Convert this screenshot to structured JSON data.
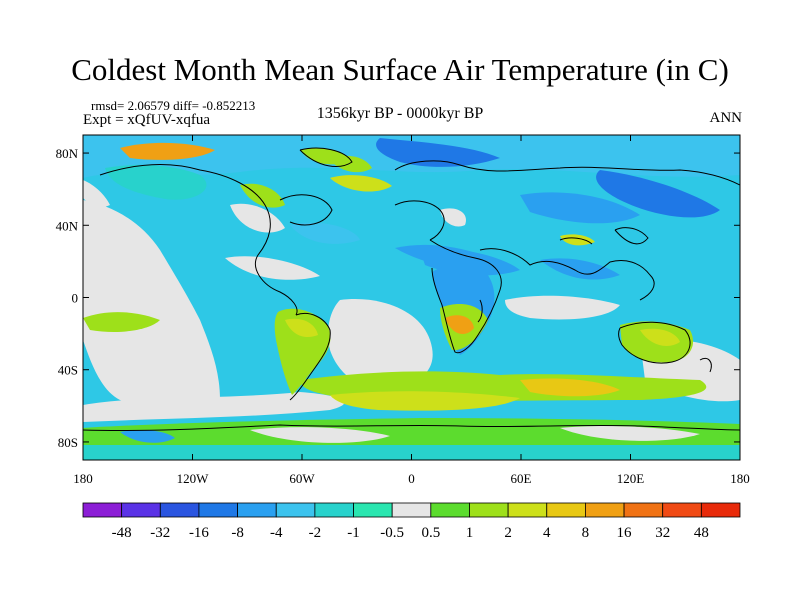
{
  "header": {
    "title": "Coldest Month Mean Surface Air Temperature (in C)",
    "stats": "rmsd= 2.06579 diff= -0.852213",
    "experiment": "Expt = xQfUV-xqfua",
    "period": "1356kyr BP - 0000kyr BP",
    "season": "ANN"
  },
  "map": {
    "lat_ticks": [
      {
        "label": "80N",
        "value": 80
      },
      {
        "label": "40N",
        "value": 40
      },
      {
        "label": "0",
        "value": 0
      },
      {
        "label": "40S",
        "value": -40
      },
      {
        "label": "80S",
        "value": -80
      }
    ],
    "lon_ticks": [
      {
        "label": "180",
        "value": -180
      },
      {
        "label": "120W",
        "value": -120
      },
      {
        "label": "60W",
        "value": -60
      },
      {
        "label": "0",
        "value": 0
      },
      {
        "label": "60E",
        "value": 60
      },
      {
        "label": "120E",
        "value": 120
      },
      {
        "label": "180",
        "value": 180
      }
    ],
    "lat_range": [
      -90,
      90
    ],
    "lon_range": [
      -180,
      180
    ]
  },
  "colorbar": {
    "colors": [
      "#8c1ed6",
      "#5a32e6",
      "#2a55e0",
      "#1f78e6",
      "#2aa0f0",
      "#3cc3ee",
      "#28d2cc",
      "#2ae6b0",
      "#e6e6e6",
      "#5cdc2e",
      "#9ee01a",
      "#cde01a",
      "#e8c814",
      "#f0a014",
      "#f07214",
      "#f04a14",
      "#e82a0a"
    ],
    "labels": [
      "-48",
      "-32",
      "-16",
      "-8",
      "-4",
      "-2",
      "-1",
      "-0.5",
      "0.5",
      "1",
      "2",
      "4",
      "8",
      "16",
      "32",
      "48"
    ]
  },
  "palette": {
    "ocean_base": "#2ec8e6",
    "neutral": "#e6e6e6",
    "land_warm": "#9ee01a",
    "coastline": "#000000"
  }
}
